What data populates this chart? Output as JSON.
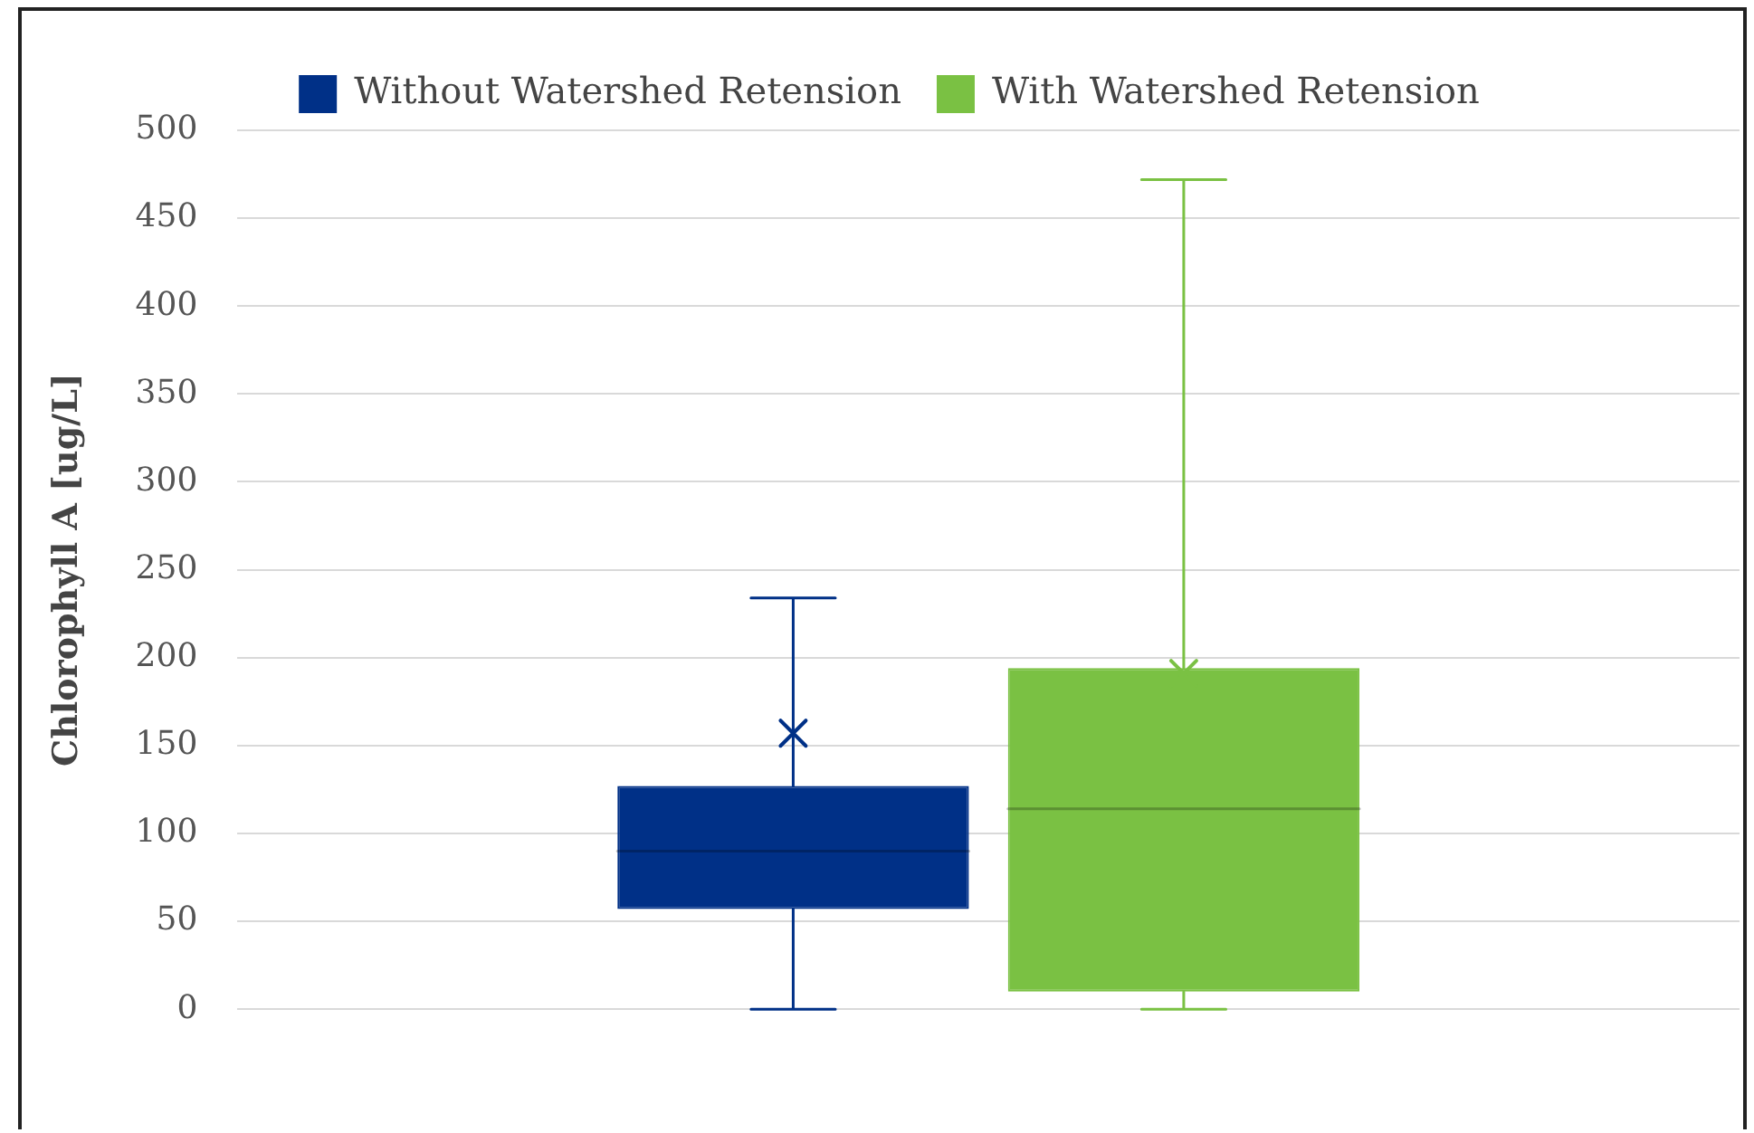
{
  "chart_data": {
    "type": "box",
    "ylabel": "Chlorophyll A [ug/L]",
    "categories": [
      null
    ],
    "ylim": [
      0,
      500
    ],
    "yticks": [
      0,
      50,
      100,
      150,
      200,
      250,
      300,
      350,
      400,
      450,
      500
    ],
    "grid": "y",
    "legend": "top",
    "marker": "cross",
    "series": [
      {
        "name": "Without Watershed Retension",
        "color": "#003087",
        "boxes": [
          {
            "low": 0,
            "q1": 57,
            "median": 90,
            "q3": 127,
            "high": 234,
            "mean": 157
          }
        ]
      },
      {
        "name": "With Watershed Retension",
        "color": "#7ac143",
        "boxes": [
          {
            "low": 0,
            "q1": 10,
            "median": 114,
            "q3": 194,
            "high": 472,
            "mean": 191
          }
        ]
      }
    ]
  }
}
